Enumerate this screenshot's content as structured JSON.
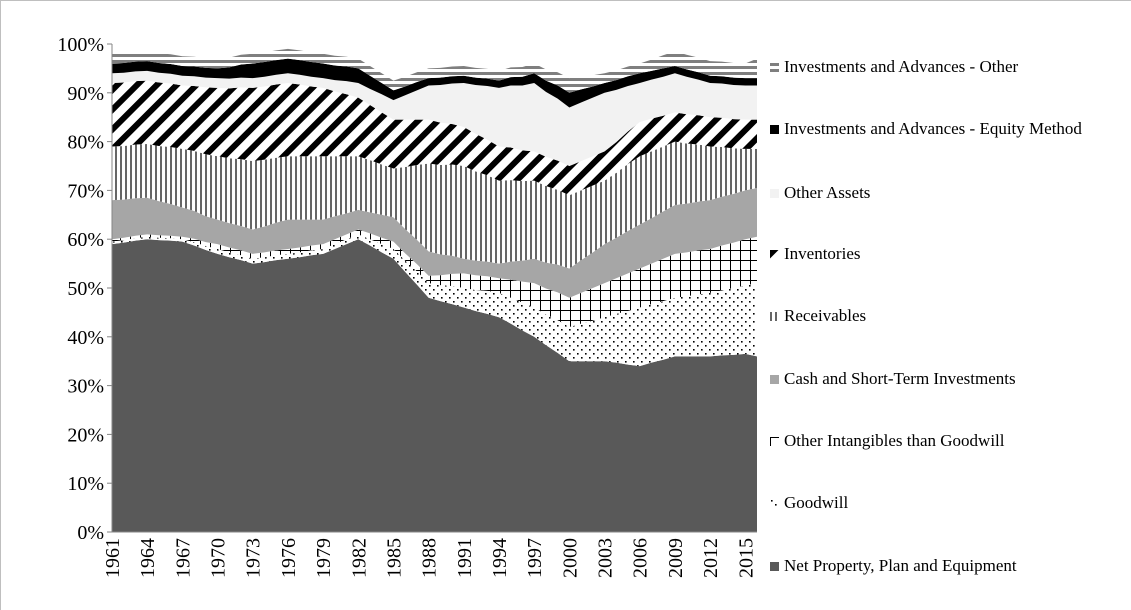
{
  "chart_data": {
    "type": "area",
    "categories": [
      "1961",
      null,
      null,
      "1964",
      null,
      null,
      "1967",
      null,
      null,
      "1970",
      null,
      null,
      "1973",
      null,
      null,
      "1976",
      null,
      null,
      "1979",
      null,
      null,
      "1982",
      null,
      null,
      "1985",
      null,
      null,
      "1988",
      null,
      null,
      "1991",
      null,
      null,
      "1994",
      null,
      null,
      "1997",
      null,
      null,
      "2000",
      null,
      null,
      "2003",
      null,
      null,
      "2006",
      null,
      null,
      "2009",
      null,
      null,
      "2012",
      null,
      null,
      "2015",
      null
    ],
    "ylim": [
      0,
      100
    ],
    "yticks": [
      {
        "value": 0,
        "label": "0%"
      },
      {
        "value": 10,
        "label": "10%"
      },
      {
        "value": 20,
        "label": "20%"
      },
      {
        "value": 30,
        "label": "30%"
      },
      {
        "value": 40,
        "label": "40%"
      },
      {
        "value": 50,
        "label": "50%"
      },
      {
        "value": 60,
        "label": "60%"
      },
      {
        "value": 70,
        "label": "70%"
      },
      {
        "value": 80,
        "label": "80%"
      },
      {
        "value": 90,
        "label": "90%"
      },
      {
        "value": 100,
        "label": "100%"
      }
    ],
    "stacked": true,
    "series": [
      {
        "name": "Net Property, Plan and Equipment",
        "color": "#595959",
        "pattern": "solid",
        "values": [
          59,
          59.3,
          59.7,
          60,
          59.8,
          59.7,
          59.5,
          58.7,
          57.8,
          57,
          56.3,
          55.7,
          55,
          55.3,
          55.7,
          56,
          56.3,
          56.7,
          57,
          58,
          59,
          60,
          58.7,
          57.3,
          56,
          53.3,
          50.7,
          48,
          47.3,
          46.7,
          46,
          45.3,
          44.7,
          44,
          42.7,
          41.3,
          40,
          38.3,
          36.7,
          35,
          35,
          35,
          35,
          34.7,
          34.3,
          34,
          34.7,
          35.3,
          36,
          36,
          36,
          36,
          36.2,
          36.3,
          36.5,
          36
        ]
      },
      {
        "name": "Goodwill",
        "color": "#000000",
        "pattern": "dots",
        "values": [
          0.5,
          0.5,
          0.5,
          0.5,
          0.5,
          0.5,
          0.5,
          0.7,
          0.8,
          1,
          1,
          1,
          1,
          1,
          1,
          1,
          1,
          1,
          1,
          1,
          1,
          1,
          1.3,
          1.7,
          2,
          2.3,
          2.7,
          3,
          3.3,
          3.7,
          4,
          4.3,
          4.7,
          5,
          5.3,
          5.7,
          6,
          6.3,
          6.7,
          7,
          7.7,
          8.3,
          9,
          10,
          11,
          12,
          12,
          12,
          12,
          12.3,
          12.7,
          13,
          13.3,
          13.7,
          14,
          15
        ]
      },
      {
        "name": "Other Intangibles than Goodwill",
        "color": "#000000",
        "pattern": "grid",
        "values": [
          0.5,
          0.5,
          0.5,
          0.5,
          0.5,
          0.5,
          0.5,
          0.7,
          0.8,
          1,
          1,
          1,
          1,
          1,
          1,
          1,
          1,
          1,
          1,
          1,
          1,
          1,
          1.2,
          1.3,
          1.5,
          1.5,
          1.5,
          1.5,
          2,
          2.5,
          3,
          3,
          3,
          3,
          3.7,
          4.3,
          5,
          5.3,
          5.7,
          6,
          6.3,
          6.7,
          7,
          7.3,
          7.7,
          8,
          8.3,
          8.7,
          9,
          9,
          9,
          9,
          9.2,
          9.3,
          9.5,
          9.5
        ]
      },
      {
        "name": "Cash and Short-Term Investments",
        "color": "#a6a6a6",
        "pattern": "solid",
        "values": [
          8,
          7.8,
          7.7,
          7.5,
          7,
          6.5,
          6,
          5.7,
          5.3,
          5,
          5,
          5,
          5,
          5.3,
          5.7,
          6,
          5.7,
          5.3,
          5,
          4.7,
          4.3,
          4,
          4.3,
          4.7,
          5,
          5,
          5,
          5,
          4.3,
          3.7,
          3,
          3,
          3,
          3,
          3.7,
          4.3,
          5,
          5.3,
          5.7,
          6,
          6.7,
          7.3,
          8,
          8.3,
          8.7,
          9,
          9.3,
          9.7,
          10,
          10,
          10,
          10,
          10,
          10,
          10,
          10
        ]
      },
      {
        "name": "Receivables",
        "color": "#000000",
        "pattern": "vlines",
        "values": [
          11,
          11,
          11,
          11,
          11.3,
          11.7,
          12,
          12.3,
          12.7,
          13,
          13.3,
          13.7,
          14,
          13.7,
          13.3,
          13,
          13,
          13,
          13,
          12.3,
          11.7,
          11,
          10.7,
          10.3,
          10,
          12.7,
          15.3,
          18,
          18.3,
          18.7,
          19,
          18.3,
          17.7,
          17,
          16.7,
          16.3,
          16,
          15.7,
          15.3,
          15,
          14.3,
          13.7,
          13,
          13.3,
          13.7,
          14,
          13.7,
          13.3,
          13,
          12.3,
          11.7,
          11,
          10.2,
          9.3,
          8.5,
          8
        ]
      },
      {
        "name": "Inventories",
        "color": "#000000",
        "pattern": "diag",
        "values": [
          13,
          13,
          13,
          13,
          13,
          13,
          13,
          13.3,
          13.7,
          14,
          14.3,
          14.7,
          15,
          15,
          15,
          15,
          14.7,
          14.3,
          14,
          13.3,
          12.7,
          12,
          11.3,
          10.7,
          10,
          9.7,
          9.3,
          9,
          8.7,
          8.3,
          8,
          7.7,
          7.3,
          7,
          6.7,
          6.3,
          6,
          6,
          6,
          6,
          6,
          6,
          6,
          6.3,
          6.7,
          7,
          6.7,
          6.3,
          6,
          6,
          6,
          6,
          6,
          6,
          6,
          6
        ]
      },
      {
        "name": "Other Assets",
        "color": "#f2f2f2",
        "pattern": "solid",
        "values": [
          2,
          2,
          2,
          2,
          2,
          2,
          2,
          2,
          2,
          2,
          2,
          2,
          2,
          2,
          2,
          2,
          2,
          2,
          2,
          2.3,
          2.7,
          3,
          3.3,
          3.7,
          4,
          5,
          6,
          7,
          7.7,
          8.3,
          9,
          10,
          11,
          12,
          12.7,
          13.3,
          14,
          13.3,
          12.7,
          12,
          12,
          12,
          12,
          10.7,
          9.3,
          8,
          8,
          8,
          8,
          7.7,
          7.3,
          7,
          7,
          7,
          7,
          7
        ]
      },
      {
        "name": "Investments and Advances - Equity Method",
        "color": "#000000",
        "pattern": "solid",
        "values": [
          2,
          2,
          2,
          2,
          2,
          2,
          2,
          2,
          2,
          2,
          2.3,
          2.7,
          3,
          3,
          3,
          3,
          3,
          3,
          3,
          3,
          3,
          3,
          2.7,
          2.3,
          2,
          1.8,
          1.7,
          1.5,
          1.5,
          1.5,
          1.5,
          1.5,
          1.5,
          1.5,
          1.7,
          1.8,
          2,
          2.3,
          2.7,
          3,
          2.7,
          2.3,
          2,
          2,
          2,
          2,
          1.8,
          1.7,
          1.5,
          1.5,
          1.5,
          1.5,
          1.5,
          1.5,
          1.5,
          1.5
        ]
      },
      {
        "name": "Investments and Advances - Other",
        "color": "#7f7f7f",
        "pattern": "hlines",
        "values": [
          2,
          2,
          2,
          2,
          2,
          2,
          2,
          2,
          2,
          2,
          2,
          2,
          2,
          2,
          2,
          2,
          2,
          2,
          2,
          2,
          2,
          2,
          2,
          2,
          2,
          2,
          2,
          2,
          2,
          2,
          2,
          2,
          2,
          2,
          2,
          2,
          2,
          2.3,
          2.7,
          3,
          2.7,
          2.3,
          2,
          2,
          2,
          2,
          2.3,
          2.7,
          3,
          3,
          3,
          3,
          3,
          3,
          3,
          4
        ]
      }
    ]
  }
}
